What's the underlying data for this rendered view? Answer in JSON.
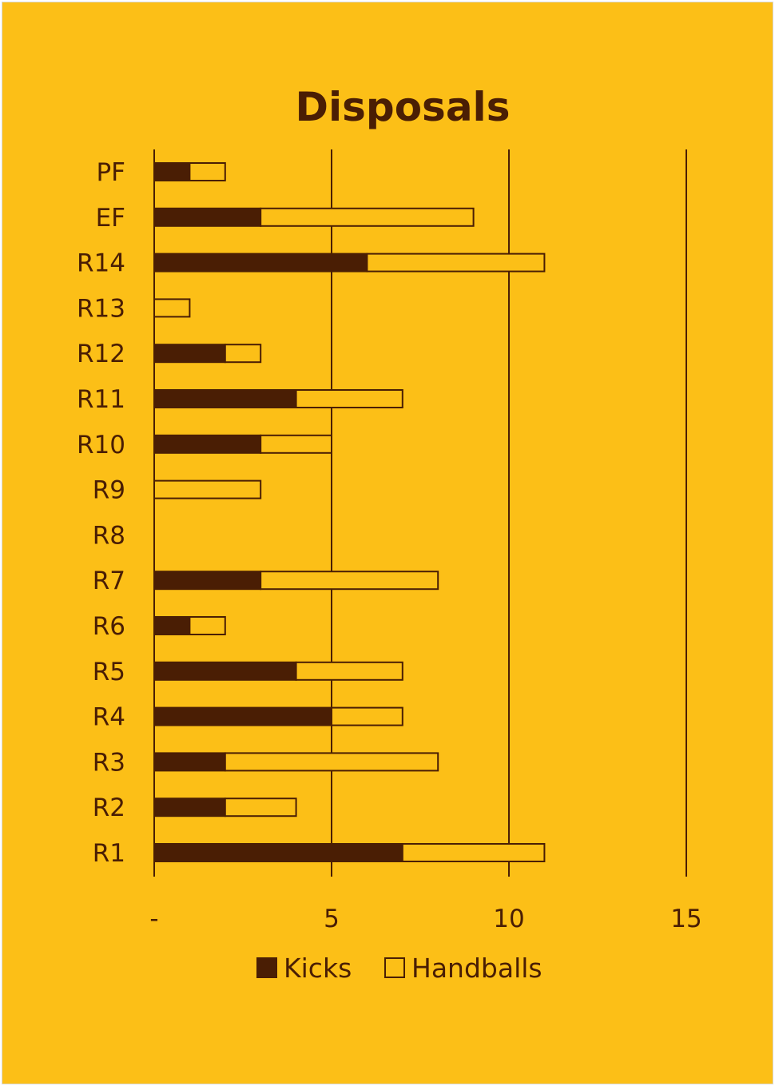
{
  "chart_data": {
    "type": "bar",
    "orientation": "horizontal",
    "stacked": true,
    "title": "Disposals",
    "categories": [
      "PF",
      "EF",
      "R14",
      "R13",
      "R12",
      "R11",
      "R10",
      "R9",
      "R8",
      "R7",
      "R6",
      "R5",
      "R4",
      "R3",
      "R2",
      "R1"
    ],
    "series": [
      {
        "name": "Kicks",
        "values": [
          1,
          3,
          6,
          0,
          2,
          4,
          3,
          0,
          0,
          3,
          1,
          4,
          5,
          2,
          2,
          7
        ]
      },
      {
        "name": "Handballs",
        "values": [
          1,
          6,
          5,
          1,
          1,
          3,
          2,
          3,
          0,
          5,
          1,
          3,
          2,
          6,
          2,
          4
        ]
      }
    ],
    "x_ticks": [
      0,
      5,
      10,
      15
    ],
    "x_tick_labels": [
      "-",
      "5",
      "10",
      "15"
    ],
    "xlim": [
      0,
      15
    ],
    "grid": "vertical",
    "legend": "bottom",
    "colors": {
      "background": "#FCBF17",
      "kicks": "#4A1E04",
      "handballs": "#FCBF17",
      "outline": "#4A1E04",
      "text": "#4A1E04"
    }
  }
}
